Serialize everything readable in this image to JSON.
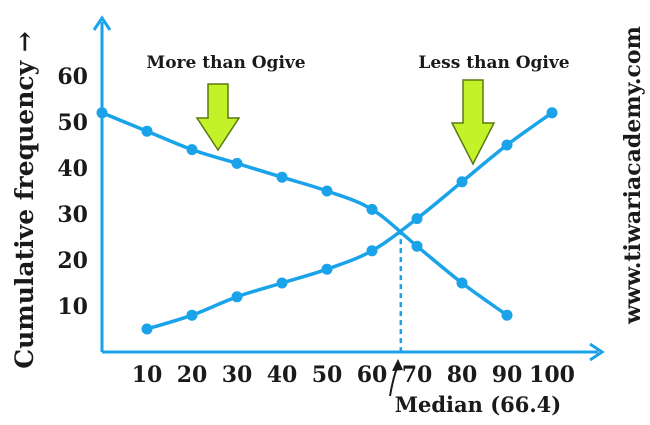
{
  "chart_data": {
    "type": "line",
    "xlabel": "",
    "ylabel": "Cumulative frequency →",
    "xlim": [
      0,
      100
    ],
    "ylim": [
      0,
      65
    ],
    "x_ticks": [
      "10",
      "20",
      "30",
      "40",
      "50",
      "60",
      "70",
      "80",
      "90",
      "100"
    ],
    "y_ticks": [
      "10",
      "20",
      "30",
      "40",
      "50",
      "60"
    ],
    "grid": false,
    "series": [
      {
        "name": "Less than Ogive",
        "x": [
          10,
          20,
          30,
          40,
          50,
          60,
          70,
          80,
          90,
          100
        ],
        "y": [
          5,
          8,
          12,
          15,
          18,
          22,
          29,
          37,
          45,
          52
        ]
      },
      {
        "name": "More than Ogive",
        "x": [
          0,
          10,
          20,
          30,
          40,
          50,
          60,
          70,
          80,
          90
        ],
        "y": [
          52,
          48,
          44,
          41,
          38,
          35,
          31,
          23,
          15,
          8
        ]
      }
    ],
    "median": {
      "value": 66.4,
      "label": "Median (66.4)"
    },
    "annotations": {
      "more_label": "More than Ogive",
      "less_label": "Less than Ogive"
    },
    "colors": {
      "line": "#1aa3e8",
      "arrow_fill": "#c4f229",
      "arrow_stroke": "#5a7a10",
      "text": "#1a1a1a"
    }
  },
  "watermark": "www.tiwariacademy.com"
}
